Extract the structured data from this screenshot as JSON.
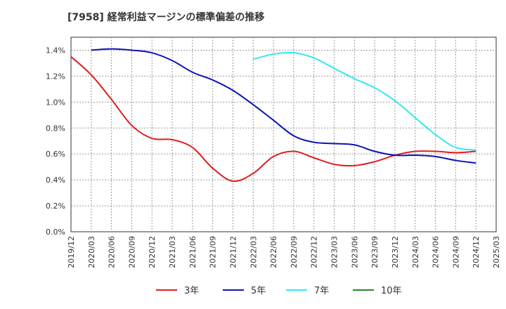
{
  "chart_data": {
    "type": "line",
    "title": "[7958]  経常利益マージンの標準偏差の推移",
    "xlabel": "",
    "ylabel": "",
    "x": [
      "2019/12",
      "2020/03",
      "2020/06",
      "2020/09",
      "2020/12",
      "2021/03",
      "2021/06",
      "2021/09",
      "2021/12",
      "2022/03",
      "2022/06",
      "2022/09",
      "2022/12",
      "2023/03",
      "2023/06",
      "2023/09",
      "2023/12",
      "2024/03",
      "2024/06",
      "2024/09",
      "2024/12",
      "2025/03"
    ],
    "ylim": [
      0,
      1.5
    ],
    "yticks": [
      0.0,
      0.2,
      0.4,
      0.6,
      0.8,
      1.0,
      1.2,
      1.4
    ],
    "ytick_labels": [
      "0.0%",
      "0.2%",
      "0.4%",
      "0.6%",
      "0.8%",
      "1.0%",
      "1.2%",
      "1.4%"
    ],
    "grid": true,
    "legend_position": "bottom",
    "series": [
      {
        "name": "3年",
        "color": "#dd1f1f",
        "values": [
          1.35,
          1.21,
          1.02,
          0.82,
          0.72,
          0.71,
          0.65,
          0.49,
          0.39,
          0.45,
          0.58,
          0.62,
          0.57,
          0.52,
          0.51,
          0.54,
          0.59,
          0.62,
          0.62,
          0.61,
          0.62,
          null
        ]
      },
      {
        "name": "5年",
        "color": "#0a14b8",
        "values": [
          null,
          1.4,
          1.41,
          1.4,
          1.38,
          1.32,
          1.23,
          1.17,
          1.09,
          0.98,
          0.86,
          0.74,
          0.69,
          0.68,
          0.67,
          0.62,
          0.59,
          0.59,
          0.58,
          0.55,
          0.53,
          null
        ]
      },
      {
        "name": "7年",
        "color": "#33e8f0",
        "values": [
          null,
          null,
          null,
          null,
          null,
          null,
          null,
          null,
          null,
          1.33,
          1.37,
          1.38,
          1.34,
          1.26,
          1.18,
          1.11,
          1.01,
          0.88,
          0.75,
          0.65,
          0.63,
          null
        ]
      },
      {
        "name": "10年",
        "color": "#1f8a1f",
        "values": [
          null,
          null,
          null,
          null,
          null,
          null,
          null,
          null,
          null,
          null,
          null,
          null,
          null,
          null,
          null,
          null,
          null,
          null,
          null,
          null,
          null,
          null
        ]
      }
    ]
  }
}
